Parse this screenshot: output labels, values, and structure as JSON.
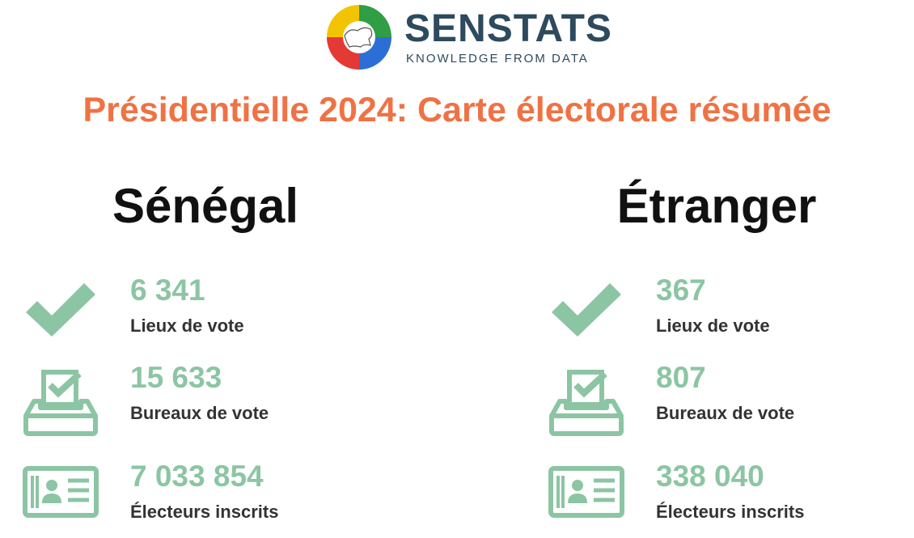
{
  "logo": {
    "brand": "SENSTATS",
    "tagline": "KNOWLEDGE FROM DATA",
    "colors": [
      "#f2c300",
      "#2f9e44",
      "#2b6fd6",
      "#e53935"
    ]
  },
  "title": "Présidentielle 2024: Carte électorale résumée",
  "accent_color": "#8cc5a3",
  "title_color": "#ef7244",
  "regions": [
    {
      "name": "Sénégal",
      "stats": [
        {
          "icon": "check-icon",
          "value": "6 341",
          "label": "Lieux de vote"
        },
        {
          "icon": "ballot-box-icon",
          "value": "15 633",
          "label": "Bureaux de vote"
        },
        {
          "icon": "voter-card-icon",
          "value": "7 033 854",
          "label": "Électeurs inscrits"
        }
      ]
    },
    {
      "name": "Étranger",
      "stats": [
        {
          "icon": "check-icon",
          "value": "367",
          "label": "Lieux de vote"
        },
        {
          "icon": "ballot-box-icon",
          "value": "807",
          "label": "Bureaux de vote"
        },
        {
          "icon": "voter-card-icon",
          "value": "338 040",
          "label": "Électeurs inscrits"
        }
      ]
    }
  ]
}
